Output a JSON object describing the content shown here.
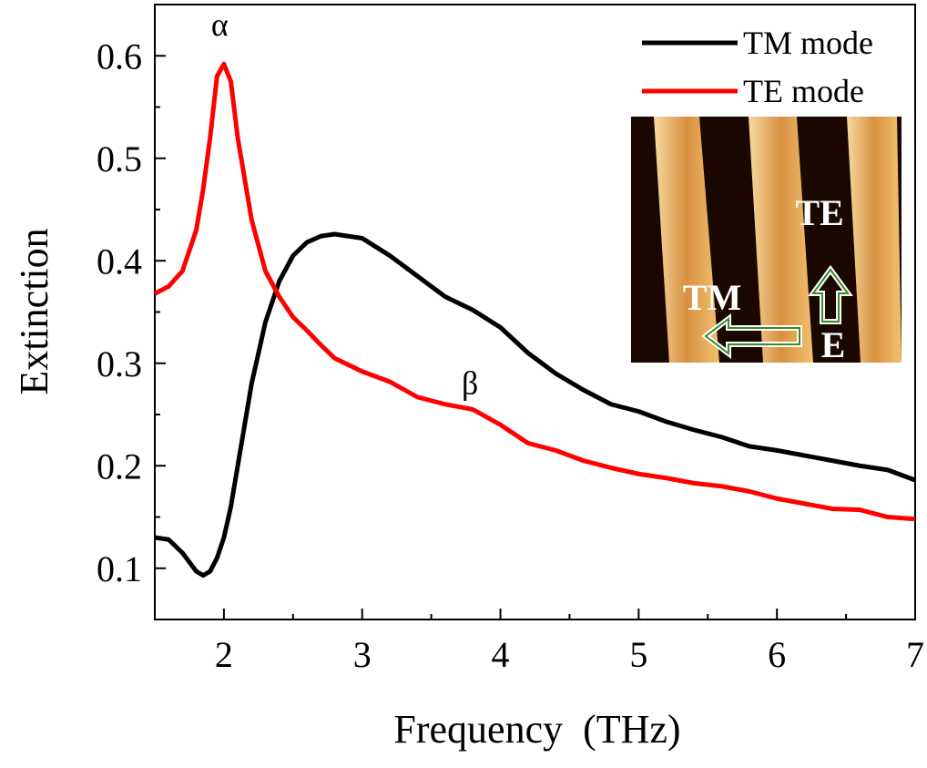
{
  "chart_data": {
    "type": "line",
    "xlabel": "Frequency  (THz)",
    "ylabel": "Extinction",
    "x": [
      1.5,
      1.6,
      1.7,
      1.8,
      1.85,
      1.9,
      1.95,
      2.0,
      2.05,
      2.1,
      2.2,
      2.3,
      2.4,
      2.5,
      2.6,
      2.7,
      2.8,
      3.0,
      3.2,
      3.4,
      3.6,
      3.8,
      4.0,
      4.2,
      4.4,
      4.6,
      4.8,
      5.0,
      5.2,
      5.4,
      5.6,
      5.8,
      6.0,
      6.2,
      6.4,
      6.6,
      6.8,
      7.0
    ],
    "series": [
      {
        "name": "TM mode",
        "color": "#000000",
        "values": [
          0.13,
          0.128,
          0.115,
          0.097,
          0.093,
          0.097,
          0.11,
          0.13,
          0.16,
          0.2,
          0.28,
          0.34,
          0.38,
          0.405,
          0.418,
          0.424,
          0.426,
          0.422,
          0.405,
          0.385,
          0.365,
          0.352,
          0.335,
          0.31,
          0.29,
          0.274,
          0.26,
          0.253,
          0.243,
          0.235,
          0.228,
          0.219,
          0.215,
          0.21,
          0.205,
          0.2,
          0.196,
          0.186
        ]
      },
      {
        "name": "TE mode",
        "color": "#ff0000",
        "values": [
          0.368,
          0.375,
          0.39,
          0.43,
          0.47,
          0.52,
          0.58,
          0.592,
          0.575,
          0.52,
          0.44,
          0.39,
          0.365,
          0.345,
          0.332,
          0.318,
          0.305,
          0.292,
          0.282,
          0.267,
          0.26,
          0.255,
          0.24,
          0.222,
          0.215,
          0.205,
          0.198,
          0.192,
          0.188,
          0.183,
          0.18,
          0.175,
          0.168,
          0.163,
          0.158,
          0.157,
          0.15,
          0.148
        ]
      }
    ],
    "xlim": [
      1.5,
      7
    ],
    "xticks": [
      2,
      3,
      4,
      5,
      6,
      7
    ],
    "ylim": [
      0.05,
      0.65
    ],
    "yticks": [
      0.1,
      0.2,
      0.3,
      0.4,
      0.5,
      0.6
    ],
    "legend": "upper right",
    "annotations": [
      {
        "text": "α",
        "x": 1.97,
        "y": 0.62
      },
      {
        "text": "β",
        "x": 3.78,
        "y": 0.27
      }
    ],
    "inset_labels": [
      "TE",
      "TM",
      "E"
    ]
  }
}
